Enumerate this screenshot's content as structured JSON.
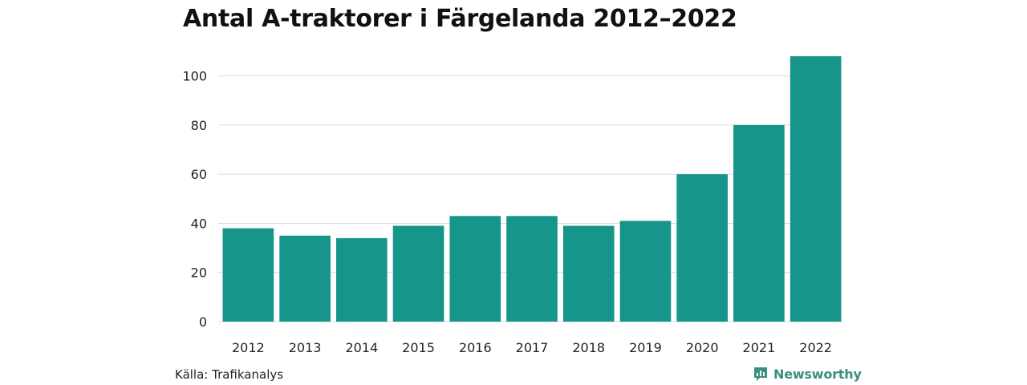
{
  "chart_data": {
    "type": "bar",
    "title": "Antal A-traktorer i Färgelanda 2012–2022",
    "xlabel": "",
    "ylabel": "",
    "categories": [
      "2012",
      "2013",
      "2014",
      "2015",
      "2016",
      "2017",
      "2018",
      "2019",
      "2020",
      "2021",
      "2022"
    ],
    "values": [
      38,
      35,
      34,
      39,
      43,
      43,
      39,
      41,
      60,
      80,
      108
    ],
    "ylim": [
      0,
      110
    ],
    "yticks": [
      0,
      20,
      40,
      60,
      80,
      100
    ],
    "grid": true,
    "bar_color": "#16968a",
    "grid_color": "#dcdcdc"
  },
  "footer": {
    "source": "Källa: Trafikanalys",
    "brand": "Newsworthy",
    "brand_icon": "newsworthy-logo-icon",
    "brand_color": "#3a8f7e"
  }
}
